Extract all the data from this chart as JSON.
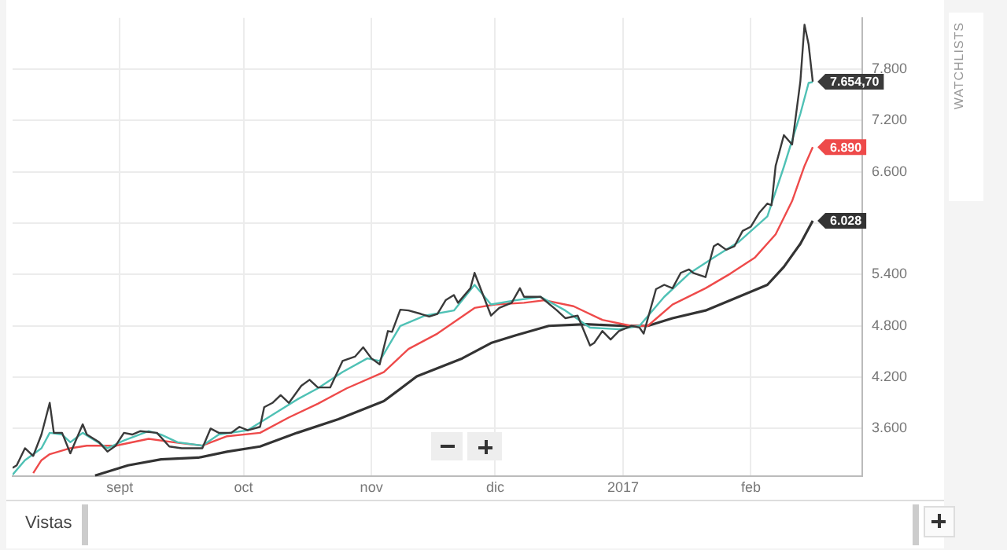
{
  "chart_data": {
    "type": "line",
    "xlim": [
      "2016-08-06",
      "2017-02-28"
    ],
    "ylim": [
      3040,
      8400
    ],
    "xticks": [
      {
        "value": "2016-09-01",
        "label": "sept"
      },
      {
        "value": "2016-10-01",
        "label": "oct"
      },
      {
        "value": "2016-11-01",
        "label": "nov"
      },
      {
        "value": "2016-12-01",
        "label": "dic"
      },
      {
        "value": "2017-01-01",
        "label": "2017"
      },
      {
        "value": "2017-02-01",
        "label": "feb"
      }
    ],
    "yticks": [
      {
        "value": 3600,
        "label": "3.600"
      },
      {
        "value": 4200,
        "label": "4.200"
      },
      {
        "value": 4800,
        "label": "4.800"
      },
      {
        "value": 5400,
        "label": "5.400"
      },
      {
        "value": 6000,
        "label": null
      },
      {
        "value": 6600,
        "label": "6.600"
      },
      {
        "value": 7200,
        "label": "7.200"
      },
      {
        "value": 7800,
        "label": "7.800"
      }
    ],
    "grid": true,
    "legend": false,
    "marker": "none",
    "line_style": "solid",
    "annotations": [
      "WATCHLISTS",
      "Vistas"
    ],
    "series": [
      {
        "color": "#3a3a3a",
        "x": [
          "2016-08-06",
          "2016-08-07",
          "2016-08-09",
          "2016-08-11",
          "2016-08-13",
          "2016-08-15",
          "2016-08-16",
          "2016-08-18",
          "2016-08-20",
          "2016-08-23",
          "2016-08-24",
          "2016-08-27",
          "2016-08-29",
          "2016-08-31",
          "2016-09-02",
          "2016-09-04",
          "2016-09-06",
          "2016-09-10",
          "2016-09-13",
          "2016-09-16",
          "2016-09-21",
          "2016-09-23",
          "2016-09-25",
          "2016-09-28",
          "2016-09-30",
          "2016-10-02",
          "2016-10-05",
          "2016-10-06",
          "2016-10-08",
          "2016-10-10",
          "2016-10-12",
          "2016-10-15",
          "2016-10-17",
          "2016-10-19",
          "2016-10-22",
          "2016-10-25",
          "2016-10-28",
          "2016-10-30",
          "2016-11-01",
          "2016-11-03",
          "2016-11-05",
          "2016-11-06",
          "2016-11-08",
          "2016-11-10",
          "2016-11-13",
          "2016-11-15",
          "2016-11-17",
          "2016-11-19",
          "2016-11-21",
          "2016-11-22",
          "2016-11-25",
          "2016-11-26",
          "2016-11-28",
          "2016-11-30",
          "2016-12-02",
          "2016-12-05",
          "2016-12-07",
          "2016-12-08",
          "2016-12-12",
          "2016-12-16",
          "2016-12-18",
          "2016-12-21",
          "2016-12-24",
          "2016-12-25",
          "2016-12-27",
          "2016-12-29",
          "2016-12-31",
          "2017-01-03",
          "2017-01-05",
          "2017-01-06",
          "2017-01-09",
          "2017-01-11",
          "2017-01-13",
          "2017-01-15",
          "2017-01-17",
          "2017-01-18",
          "2017-01-21",
          "2017-01-23",
          "2017-01-24",
          "2017-01-26",
          "2017-01-28",
          "2017-01-30",
          "2017-02-01",
          "2017-02-03",
          "2017-02-05",
          "2017-02-06",
          "2017-02-07",
          "2017-02-09",
          "2017-02-11",
          "2017-02-13",
          "2017-02-14",
          "2017-02-15",
          "2017-02-16"
        ],
        "values": [
          3140,
          3170,
          3370,
          3280,
          3530,
          3900,
          3550,
          3550,
          3310,
          3650,
          3530,
          3440,
          3330,
          3400,
          3550,
          3530,
          3570,
          3550,
          3390,
          3370,
          3370,
          3600,
          3550,
          3550,
          3620,
          3580,
          3620,
          3850,
          3900,
          3990,
          3900,
          4100,
          4170,
          4080,
          4080,
          4390,
          4440,
          4550,
          4420,
          4350,
          4740,
          4730,
          4990,
          4980,
          4940,
          4910,
          4940,
          5100,
          5160,
          5070,
          5240,
          5420,
          5170,
          4920,
          5010,
          5070,
          5240,
          5140,
          5140,
          4980,
          4890,
          4920,
          4570,
          4600,
          4740,
          4640,
          4740,
          4800,
          4780,
          4710,
          5230,
          5280,
          5240,
          5420,
          5460,
          5420,
          5370,
          5730,
          5760,
          5690,
          5730,
          5910,
          5960,
          6120,
          6230,
          6210,
          6670,
          7030,
          6920,
          7660,
          8320,
          8090,
          7654.7
        ],
        "value_labels": [
          null,
          null,
          null,
          null,
          null,
          null,
          null,
          null,
          null,
          null,
          null,
          null,
          null,
          null,
          null,
          null,
          null,
          null,
          null,
          null,
          null,
          null,
          null,
          null,
          null,
          null,
          null,
          null,
          null,
          null,
          null,
          null,
          null,
          null,
          null,
          null,
          null,
          null,
          null,
          null,
          null,
          null,
          null,
          null,
          null,
          null,
          null,
          null,
          null,
          null,
          null,
          null,
          null,
          null,
          null,
          null,
          null,
          null,
          null,
          null,
          null,
          null,
          null,
          null,
          null,
          null,
          null,
          null,
          null,
          null,
          null,
          null,
          null,
          null,
          null,
          null,
          null,
          null,
          null,
          null,
          null,
          null,
          null,
          null,
          null,
          null,
          null,
          null,
          null,
          null,
          null,
          null,
          "7.654,70"
        ]
      },
      {
        "color": "#4fc1b5",
        "x": [
          "2016-08-06",
          "2016-08-09",
          "2016-08-13",
          "2016-08-15",
          "2016-08-18",
          "2016-08-20",
          "2016-08-23",
          "2016-08-29",
          "2016-09-02",
          "2016-09-08",
          "2016-09-11",
          "2016-09-15",
          "2016-09-21",
          "2016-09-25",
          "2016-10-02",
          "2016-10-08",
          "2016-10-14",
          "2016-10-19",
          "2016-10-25",
          "2016-10-31",
          "2016-11-03",
          "2016-11-08",
          "2016-11-14",
          "2016-11-21",
          "2016-11-26",
          "2016-11-30",
          "2016-12-06",
          "2016-12-12",
          "2016-12-18",
          "2016-12-24",
          "2016-12-31",
          "2017-01-05",
          "2017-01-11",
          "2017-01-17",
          "2017-01-23",
          "2017-01-29",
          "2017-02-05",
          "2017-02-09",
          "2017-02-13",
          "2017-02-15",
          "2017-02-16"
        ],
        "values": [
          3060,
          3230,
          3370,
          3550,
          3530,
          3440,
          3550,
          3370,
          3460,
          3570,
          3530,
          3440,
          3400,
          3530,
          3580,
          3760,
          3940,
          4070,
          4260,
          4420,
          4390,
          4800,
          4920,
          4980,
          5280,
          5050,
          5100,
          5140,
          4980,
          4780,
          4760,
          4800,
          5140,
          5410,
          5600,
          5780,
          6080,
          6660,
          7280,
          7640,
          7650
        ]
      },
      {
        "color": "#ee4a4a",
        "x": [
          "2016-08-11",
          "2016-08-13",
          "2016-08-15",
          "2016-08-20",
          "2016-08-24",
          "2016-08-31",
          "2016-09-08",
          "2016-09-14",
          "2016-09-21",
          "2016-09-27",
          "2016-10-05",
          "2016-10-12",
          "2016-10-19",
          "2016-10-26",
          "2016-11-04",
          "2016-11-10",
          "2016-11-17",
          "2016-11-26",
          "2016-12-01",
          "2016-12-08",
          "2016-12-13",
          "2016-12-20",
          "2016-12-27",
          "2017-01-03",
          "2017-01-07",
          "2017-01-13",
          "2017-01-21",
          "2017-01-27",
          "2017-02-02",
          "2017-02-07",
          "2017-02-11",
          "2017-02-14",
          "2017-02-16"
        ],
        "values": [
          3080,
          3230,
          3300,
          3370,
          3400,
          3400,
          3480,
          3440,
          3400,
          3510,
          3550,
          3730,
          3890,
          4070,
          4260,
          4530,
          4710,
          5010,
          5050,
          5070,
          5100,
          5030,
          4870,
          4800,
          4800,
          5050,
          5240,
          5410,
          5600,
          5870,
          6260,
          6670,
          6890
        ],
        "value_labels": [
          null,
          null,
          null,
          null,
          null,
          null,
          null,
          null,
          null,
          null,
          null,
          null,
          null,
          null,
          null,
          null,
          null,
          null,
          null,
          null,
          null,
          null,
          null,
          null,
          null,
          null,
          null,
          null,
          null,
          null,
          null,
          null,
          "6.890"
        ]
      },
      {
        "color": "#333333",
        "x": [
          "2016-08-26",
          "2016-09-03",
          "2016-09-11",
          "2016-09-20",
          "2016-09-27",
          "2016-10-05",
          "2016-10-14",
          "2016-10-24",
          "2016-11-04",
          "2016-11-12",
          "2016-11-23",
          "2016-11-30",
          "2016-12-06",
          "2016-12-14",
          "2016-12-23",
          "2017-01-01",
          "2017-01-07",
          "2017-01-13",
          "2017-01-21",
          "2017-01-28",
          "2017-02-05",
          "2017-02-09",
          "2017-02-13",
          "2017-02-16"
        ],
        "values": [
          3050,
          3170,
          3240,
          3260,
          3330,
          3390,
          3550,
          3710,
          3920,
          4210,
          4420,
          4600,
          4690,
          4800,
          4820,
          4800,
          4800,
          4890,
          4980,
          5120,
          5280,
          5490,
          5760,
          6028
        ],
        "value_labels": [
          null,
          null,
          null,
          null,
          null,
          null,
          null,
          null,
          null,
          null,
          null,
          null,
          null,
          null,
          null,
          null,
          null,
          null,
          null,
          null,
          null,
          null,
          null,
          "6.028"
        ]
      }
    ]
  }
}
